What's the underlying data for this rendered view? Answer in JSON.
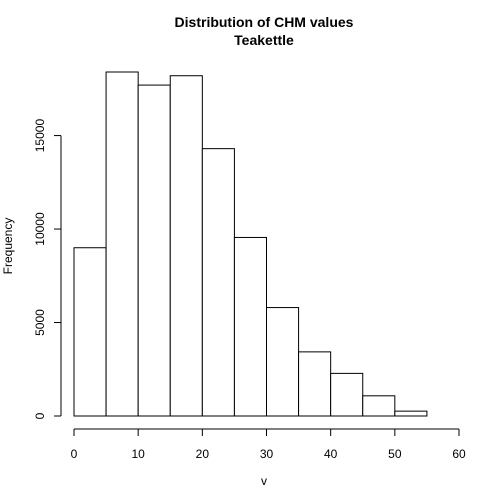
{
  "chart_data": {
    "type": "bar",
    "title": "Distribution of CHM values",
    "subtitle": "Teakettle",
    "xlabel": "v",
    "ylabel": "Frequency",
    "bin_edges": [
      0,
      5,
      10,
      15,
      20,
      25,
      30,
      35,
      40,
      45,
      50,
      55
    ],
    "values": [
      9000,
      18400,
      17700,
      18200,
      14300,
      9550,
      5800,
      3430,
      2280,
      1080,
      260
    ],
    "xlim": [
      0,
      60
    ],
    "ylim": [
      0,
      18400
    ],
    "x_ticks": [
      0,
      10,
      20,
      30,
      40,
      50,
      60
    ],
    "y_ticks": [
      0,
      5000,
      10000,
      15000
    ],
    "grid": false,
    "colors": {
      "bar_fill": "#ffffff",
      "bar_stroke": "#000000"
    }
  }
}
